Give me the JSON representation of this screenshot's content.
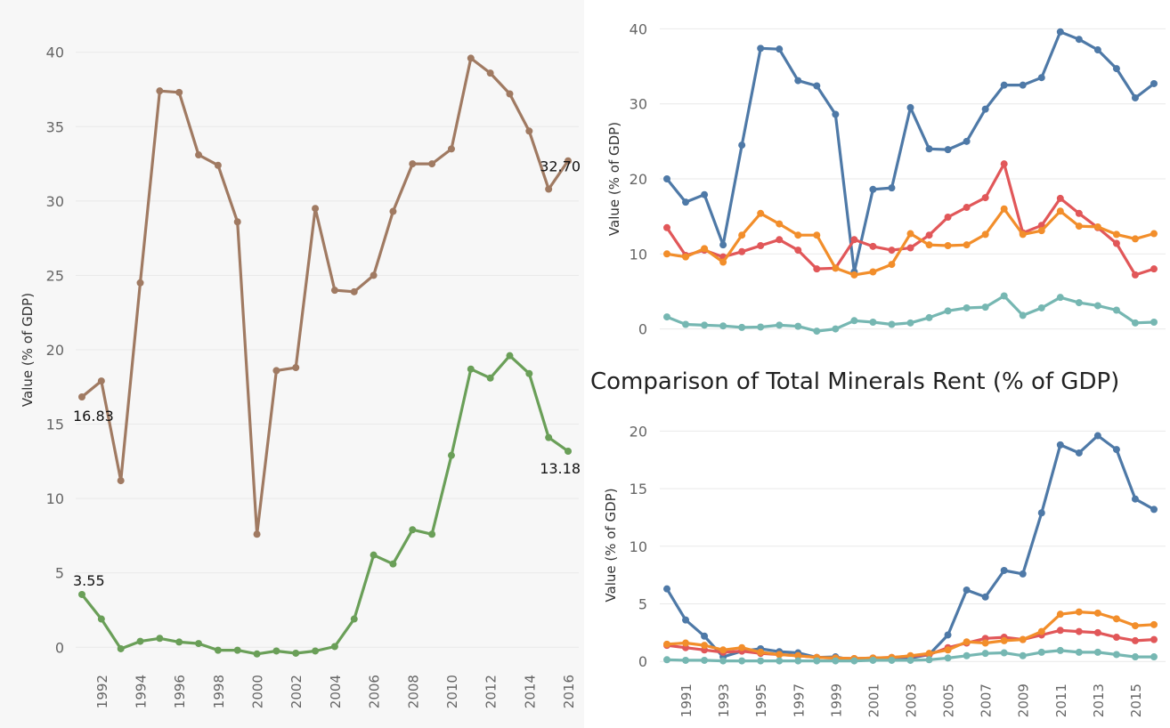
{
  "bottom_title": "Comparison of Total Minerals  Rent (% of GDP)",
  "chart_data": [
    {
      "type": "line",
      "ylabel": "Value (% of GDP)",
      "xlabel": "",
      "x": [
        1991,
        1992,
        1993,
        1994,
        1995,
        1996,
        1997,
        1998,
        1999,
        2000,
        2001,
        2002,
        2003,
        2004,
        2005,
        2006,
        2007,
        2008,
        2009,
        2010,
        2011,
        2012,
        2013,
        2014,
        2015,
        2016
      ],
      "xticks": [
        1992,
        1994,
        1996,
        1998,
        2000,
        2002,
        2004,
        2006,
        2008,
        2010,
        2012,
        2014,
        2016
      ],
      "xlim": [
        1991,
        2016
      ],
      "ylim": [
        -1,
        41
      ],
      "yticks": [
        0,
        5,
        10,
        15,
        20,
        25,
        30,
        35,
        40
      ],
      "grid": true,
      "series": [
        {
          "color": "#a07a62",
          "values": [
            16.83,
            17.9,
            11.2,
            24.5,
            37.4,
            37.3,
            33.1,
            32.4,
            28.6,
            7.6,
            18.6,
            18.8,
            29.5,
            24.0,
            23.9,
            25.0,
            29.3,
            32.5,
            32.5,
            33.5,
            39.6,
            38.6,
            37.2,
            34.7,
            30.8,
            32.7
          ]
        },
        {
          "color": "#6a9f58",
          "values": [
            3.55,
            1.9,
            -0.1,
            0.4,
            0.6,
            0.35,
            0.25,
            -0.2,
            -0.2,
            -0.45,
            -0.25,
            -0.4,
            -0.25,
            0.05,
            1.9,
            6.2,
            5.6,
            7.9,
            7.6,
            12.9,
            18.7,
            18.1,
            19.6,
            18.4,
            14.1,
            13.18
          ]
        }
      ],
      "labels": [
        {
          "series": 0,
          "x": 1991,
          "text": "16.83"
        },
        {
          "series": 0,
          "x": 2016,
          "text": "32.70"
        },
        {
          "series": 1,
          "x": 1991,
          "text": "3.55"
        },
        {
          "series": 1,
          "x": 2016,
          "text": "13.18"
        }
      ]
    },
    {
      "type": "line",
      "ylabel": "Value (% of GDP)",
      "xlabel": "",
      "x": [
        1990,
        1991,
        1992,
        1993,
        1994,
        1995,
        1996,
        1997,
        1998,
        1999,
        2000,
        2001,
        2002,
        2003,
        2004,
        2005,
        2006,
        2007,
        2008,
        2009,
        2010,
        2011,
        2012,
        2013,
        2014,
        2015,
        2016
      ],
      "xlim": [
        1990,
        2016
      ],
      "ylim": [
        -1,
        41
      ],
      "yticks": [
        0,
        10,
        20,
        30,
        40
      ],
      "grid": true,
      "series": [
        {
          "color": "#4e79a7",
          "values": [
            20.0,
            16.9,
            17.9,
            11.2,
            24.5,
            37.4,
            37.3,
            33.1,
            32.4,
            28.6,
            7.6,
            18.6,
            18.8,
            29.5,
            24.0,
            23.9,
            25.0,
            29.3,
            32.5,
            32.5,
            33.5,
            39.6,
            38.6,
            37.2,
            34.7,
            30.8,
            32.7
          ]
        },
        {
          "color": "#e15759",
          "values": [
            13.5,
            9.8,
            10.5,
            9.6,
            10.3,
            11.1,
            11.9,
            10.5,
            8.0,
            8.1,
            11.9,
            11.0,
            10.5,
            10.8,
            12.5,
            14.9,
            16.2,
            17.5,
            22.0,
            12.8,
            13.8,
            17.4,
            15.4,
            13.5,
            11.4,
            7.2,
            8.0
          ]
        },
        {
          "color": "#f28e2b",
          "values": [
            10.0,
            9.6,
            10.7,
            8.9,
            12.5,
            15.4,
            14.0,
            12.5,
            12.5,
            8.1,
            7.2,
            7.6,
            8.6,
            12.7,
            11.2,
            11.1,
            11.2,
            12.6,
            16.0,
            12.6,
            13.1,
            15.7,
            13.7,
            13.6,
            12.6,
            12.0,
            12.7
          ]
        },
        {
          "color": "#76b7b2",
          "values": [
            1.6,
            0.6,
            0.5,
            0.4,
            0.2,
            0.25,
            0.5,
            0.35,
            -0.3,
            0.0,
            1.1,
            0.9,
            0.6,
            0.8,
            1.5,
            2.4,
            2.8,
            2.9,
            4.4,
            1.8,
            2.8,
            4.2,
            3.5,
            3.1,
            2.5,
            0.8,
            0.9
          ]
        }
      ]
    },
    {
      "type": "line",
      "ylabel": "Value (% of GDP)",
      "xlabel": "",
      "x": [
        1990,
        1991,
        1992,
        1993,
        1994,
        1995,
        1996,
        1997,
        1998,
        1999,
        2000,
        2001,
        2002,
        2003,
        2004,
        2005,
        2006,
        2007,
        2008,
        2009,
        2010,
        2011,
        2012,
        2013,
        2014,
        2015,
        2016
      ],
      "xticks": [
        1991,
        1993,
        1995,
        1997,
        1999,
        2001,
        2003,
        2005,
        2007,
        2009,
        2011,
        2013,
        2015
      ],
      "xlim": [
        1990,
        2016
      ],
      "ylim": [
        -0.6,
        20.8
      ],
      "yticks": [
        0,
        5,
        10,
        15,
        20
      ],
      "grid": true,
      "series": [
        {
          "color": "#4e79a7",
          "values": [
            6.3,
            3.6,
            2.2,
            0.4,
            0.9,
            1.1,
            0.85,
            0.75,
            0.35,
            0.4,
            0.1,
            0.25,
            0.2,
            0.3,
            0.6,
            2.3,
            6.2,
            5.6,
            7.9,
            7.6,
            12.9,
            18.8,
            18.1,
            19.6,
            18.4,
            14.1,
            13.2
          ]
        },
        {
          "color": "#e15759",
          "values": [
            1.4,
            1.2,
            1.0,
            0.8,
            0.9,
            0.7,
            0.6,
            0.5,
            0.35,
            0.3,
            0.25,
            0.3,
            0.35,
            0.45,
            0.6,
            1.2,
            1.6,
            2.0,
            2.1,
            1.9,
            2.3,
            2.7,
            2.6,
            2.5,
            2.1,
            1.8,
            1.9
          ]
        },
        {
          "color": "#f28e2b",
          "values": [
            1.5,
            1.6,
            1.4,
            1.0,
            1.2,
            0.8,
            0.6,
            0.5,
            0.35,
            0.3,
            0.25,
            0.3,
            0.35,
            0.5,
            0.7,
            1.0,
            1.7,
            1.6,
            1.8,
            1.9,
            2.6,
            4.1,
            4.3,
            4.2,
            3.7,
            3.1,
            3.2
          ]
        },
        {
          "color": "#76b7b2",
          "values": [
            0.15,
            0.1,
            0.1,
            0.05,
            0.05,
            0.05,
            0.05,
            0.05,
            0.05,
            0.05,
            0.05,
            0.1,
            0.1,
            0.1,
            0.15,
            0.3,
            0.5,
            0.7,
            0.75,
            0.5,
            0.8,
            0.95,
            0.8,
            0.8,
            0.6,
            0.4,
            0.4
          ]
        }
      ]
    }
  ]
}
